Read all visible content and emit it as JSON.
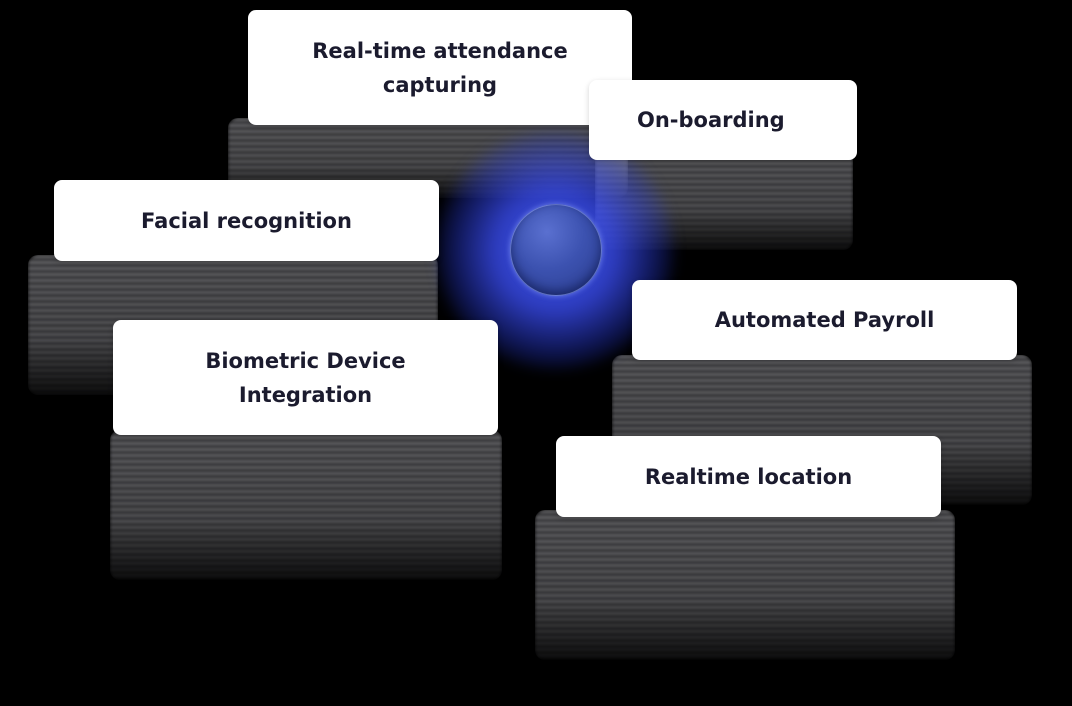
{
  "diagram": {
    "center": {
      "icon": "orb-icon",
      "color": "#3c52b0",
      "glow_color": "#465fff"
    },
    "features": [
      {
        "label": "Real-time attendance\ncapturing"
      },
      {
        "label": "On-boarding"
      },
      {
        "label": "Facial recognition"
      },
      {
        "label": "Biometric Device\nIntegration"
      },
      {
        "label": "Automated Payroll"
      },
      {
        "label": "Realtime location"
      }
    ]
  }
}
